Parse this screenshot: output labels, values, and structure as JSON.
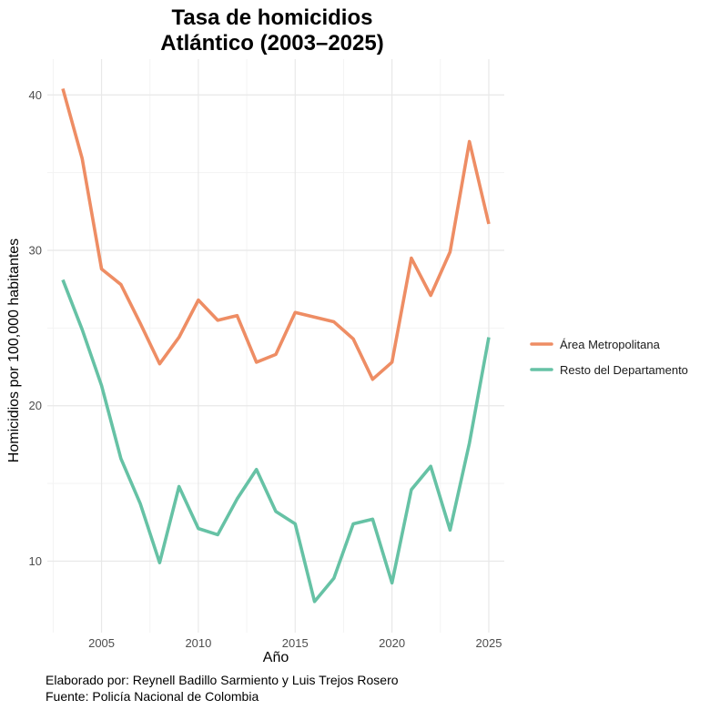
{
  "chart_data": {
    "type": "line",
    "title_line1": "Tasa de homicidios",
    "title_line2": "Atlántico (2003–2025)",
    "xlabel": "Año",
    "ylabel": "Homicidios por 100,000 habitantes",
    "xlim": [
      2002.2,
      2025.8
    ],
    "ylim": [
      5.4,
      42.3
    ],
    "x_ticks": [
      2005,
      2010,
      2015,
      2020,
      2025
    ],
    "y_ticks": [
      10,
      20,
      30,
      40
    ],
    "x": [
      2003,
      2004,
      2005,
      2006,
      2007,
      2008,
      2009,
      2010,
      2011,
      2012,
      2013,
      2014,
      2015,
      2016,
      2017,
      2018,
      2019,
      2020,
      2021,
      2022,
      2023,
      2024,
      2025
    ],
    "series": [
      {
        "name": "Área Metropolitana",
        "color": "#ee8d64",
        "values": [
          40.4,
          35.9,
          28.8,
          27.8,
          25.3,
          22.7,
          24.4,
          26.8,
          25.5,
          25.8,
          22.8,
          23.3,
          26.0,
          25.7,
          25.4,
          24.3,
          21.7,
          22.8,
          29.5,
          27.1,
          29.9,
          37.0,
          31.7
        ]
      },
      {
        "name": "Resto del Departamento",
        "color": "#66c2a5",
        "values": [
          28.1,
          24.9,
          21.3,
          16.6,
          13.7,
          9.9,
          14.8,
          12.1,
          11.7,
          14.0,
          15.9,
          13.2,
          12.4,
          7.4,
          8.9,
          12.4,
          12.7,
          8.6,
          14.6,
          16.1,
          12.0,
          17.6,
          24.4
        ]
      }
    ],
    "legend_position": "right"
  },
  "caption": {
    "line1": "Elaborado por: Reynell Badillo Sarmiento y Luis Trejos Rosero",
    "line2": "Fuente: Policía Nacional de Colombia"
  }
}
